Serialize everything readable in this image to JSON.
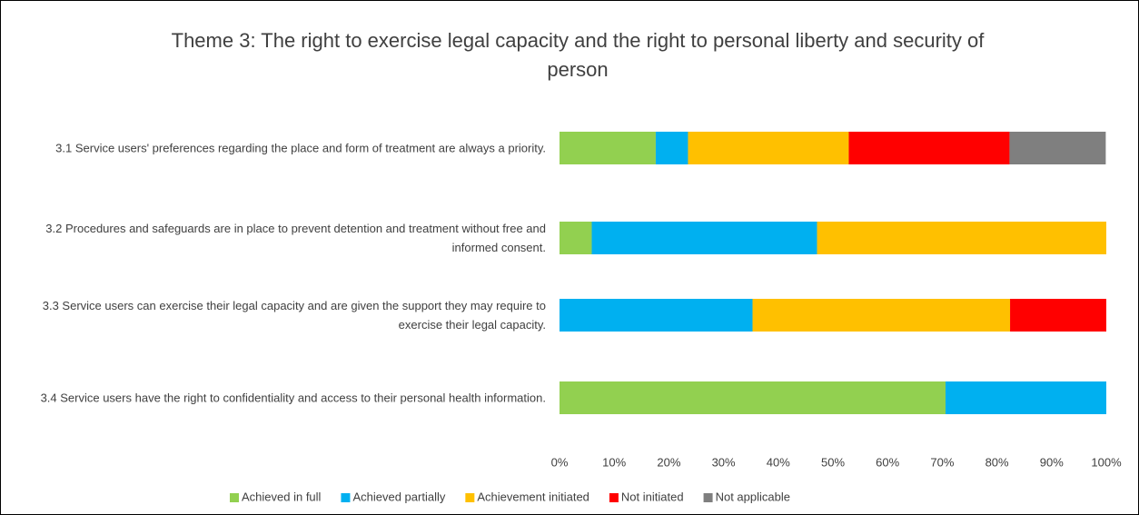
{
  "chart_data": {
    "type": "stacked_barh",
    "title": "Theme 3: The right to exercise legal capacity and the right to personal liberty and security of person",
    "categories": [
      "3.1 Service users' preferences regarding the place and form of treatment are always a priority.",
      "3.2 Procedures and safeguards are in place to prevent detention and treatment without free and informed consent.",
      "3.3 Service users can exercise their legal capacity and are given the support they may require to exercise their legal capacity.",
      "3.4 Service users have the right to confidentiality and access to their personal health information."
    ],
    "series": [
      {
        "name": "Achieved in full",
        "color": "#92d050",
        "values": [
          17.6,
          5.9,
          0,
          70.6
        ]
      },
      {
        "name": "Achieved partially",
        "color": "#00b0f0",
        "values": [
          5.9,
          41.2,
          35.3,
          29.4
        ]
      },
      {
        "name": "Achievement initiated",
        "color": "#ffc000",
        "values": [
          29.4,
          52.9,
          47.1,
          0
        ]
      },
      {
        "name": "Not initiated",
        "color": "#ff0000",
        "values": [
          29.4,
          0,
          17.6,
          0
        ]
      },
      {
        "name": "Not applicable",
        "color": "#7f7f7f",
        "values": [
          17.6,
          0,
          0,
          0
        ]
      }
    ],
    "xlim": [
      0,
      100
    ],
    "xticks": [
      {
        "value": 0,
        "label": "0%"
      },
      {
        "value": 10,
        "label": "10%"
      },
      {
        "value": 20,
        "label": "20%"
      },
      {
        "value": 30,
        "label": "30%"
      },
      {
        "value": 40,
        "label": "40%"
      },
      {
        "value": 50,
        "label": "50%"
      },
      {
        "value": 60,
        "label": "60%"
      },
      {
        "value": 70,
        "label": "70%"
      },
      {
        "value": 80,
        "label": "80%"
      },
      {
        "value": 90,
        "label": "90%"
      },
      {
        "value": 100,
        "label": "100%"
      }
    ],
    "legend": "bottom"
  }
}
